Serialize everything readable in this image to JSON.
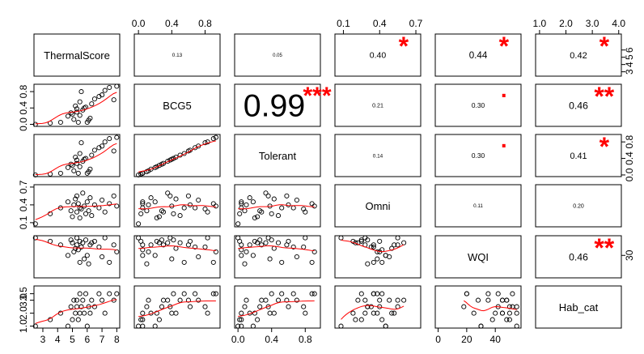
{
  "chart_data": {
    "type": "scatter",
    "variables": [
      "ThermalScore",
      "BCG5",
      "Tolerant",
      "Omni",
      "WQI",
      "Hab_cat"
    ],
    "axes": {
      "ThermalScore": {
        "range": [
          2.4,
          8.2
        ],
        "ticks": [
          "3",
          "4",
          "5",
          "6",
          "7",
          "8"
        ]
      },
      "BCG5": {
        "range": [
          -0.05,
          0.98
        ],
        "ticks": [
          "0.0",
          "0.4",
          "0.8"
        ]
      },
      "Tolerant": {
        "range": [
          -0.04,
          0.98
        ],
        "ticks": [
          "0.0",
          "0.4",
          "0.8"
        ]
      },
      "Omni": {
        "range": [
          0.03,
          0.74
        ],
        "ticks": [
          "0.1",
          "0.4",
          "0.7"
        ]
      },
      "WQI": {
        "range": [
          -2,
          58
        ],
        "ticks": [
          "0",
          "20",
          "40"
        ]
      },
      "Hab_cat": {
        "range": [
          0.85,
          4.1
        ],
        "ticks": [
          "1.0",
          "2.0",
          "3.0",
          "4.0"
        ]
      }
    },
    "visible_tick_labels": {
      "bottom": {
        "ThermalScore": [
          "3",
          "4",
          "5",
          "6",
          "7",
          "8"
        ],
        "Tolerant": [
          "0.0",
          "0.4",
          "0.8"
        ],
        "WQI": [
          "0",
          "20",
          "40"
        ]
      },
      "top": {
        "BCG5": [
          "0.0",
          "0.4",
          "0.8"
        ],
        "Omni": [
          "0.1",
          "0.4",
          "0.7"
        ],
        "Hab_cat": [
          "1.0",
          "2.0",
          "3.0",
          "4.0"
        ]
      },
      "left": {
        "BCG5": [
          "0.0",
          "0.4",
          "0.8"
        ],
        "Omni": [
          "0.1",
          "0.4",
          "0.7"
        ],
        "Hab_cat": [
          "1.0",
          "2.0",
          "3.0",
          "3.5"
        ]
      },
      "right": {
        "ThermalScore": [
          "3",
          "4",
          "5",
          "6"
        ],
        "Tolerant": [
          "0.0",
          "0.4",
          "0.8"
        ],
        "WQI": [
          "30"
        ]
      }
    },
    "correlations": [
      {
        "row": 1,
        "col": 2,
        "value": "0.13",
        "stars": ""
      },
      {
        "row": 1,
        "col": 3,
        "value": "0.05",
        "stars": ""
      },
      {
        "row": 1,
        "col": 4,
        "value": "0.40",
        "stars": "*"
      },
      {
        "row": 1,
        "col": 5,
        "value": "0.44",
        "stars": "*"
      },
      {
        "row": 1,
        "col": 6,
        "value": "0.42",
        "stars": "*"
      },
      {
        "row": 2,
        "col": 3,
        "value": "0.99",
        "stars": "***"
      },
      {
        "row": 2,
        "col": 4,
        "value": "0.21",
        "stars": ""
      },
      {
        "row": 2,
        "col": 5,
        "value": "0.30",
        "stars": "."
      },
      {
        "row": 2,
        "col": 6,
        "value": "0.46",
        "stars": "**"
      },
      {
        "row": 3,
        "col": 4,
        "value": "0.14",
        "stars": ""
      },
      {
        "row": 3,
        "col": 5,
        "value": "0.30",
        "stars": "."
      },
      {
        "row": 3,
        "col": 6,
        "value": "0.41",
        "stars": "*"
      },
      {
        "row": 4,
        "col": 5,
        "value": "0.11",
        "stars": ""
      },
      {
        "row": 4,
        "col": 6,
        "value": "0.20",
        "stars": ""
      },
      {
        "row": 5,
        "col": 6,
        "value": "0.46",
        "stars": "**"
      }
    ],
    "observations": {
      "ThermalScore": [
        2.5,
        3.5,
        4.2,
        4.7,
        4.9,
        5.0,
        5.1,
        5.2,
        5.3,
        5.3,
        5.4,
        5.5,
        5.5,
        5.6,
        5.7,
        5.8,
        5.9,
        6.0,
        6.1,
        6.2,
        6.3,
        6.5,
        6.8,
        7.0,
        7.2,
        7.5,
        7.8,
        8.0
      ],
      "BCG5": [
        0.0,
        0.03,
        0.05,
        0.2,
        0.28,
        0.25,
        0.12,
        0.45,
        0.38,
        0.3,
        0.05,
        0.55,
        0.22,
        0.8,
        0.35,
        0.4,
        0.42,
        0.05,
        0.1,
        0.15,
        0.5,
        0.62,
        0.68,
        0.72,
        0.83,
        0.9,
        0.6,
        0.93
      ],
      "Tolerant": [
        0.0,
        0.02,
        0.04,
        0.18,
        0.26,
        0.23,
        0.1,
        0.43,
        0.36,
        0.28,
        0.04,
        0.52,
        0.2,
        0.78,
        0.33,
        0.38,
        0.4,
        0.04,
        0.08,
        0.14,
        0.48,
        0.6,
        0.66,
        0.7,
        0.8,
        0.88,
        0.58,
        0.91
      ],
      "Omni": [
        0.08,
        0.25,
        0.35,
        0.45,
        0.3,
        0.2,
        0.4,
        0.5,
        0.55,
        0.28,
        0.42,
        0.35,
        0.18,
        0.33,
        0.6,
        0.38,
        0.25,
        0.45,
        0.3,
        0.52,
        0.22,
        0.4,
        0.35,
        0.48,
        0.28,
        0.42,
        0.55,
        0.38
      ],
      "WQI": [
        55,
        50,
        45,
        30,
        52,
        48,
        35,
        40,
        55,
        45,
        38,
        20,
        50,
        42,
        48,
        25,
        52,
        30,
        18,
        45,
        48,
        50,
        42,
        28,
        55,
        20,
        45,
        35
      ],
      "Hab_cat": [
        1.0,
        1.5,
        2.0,
        1.0,
        2.5,
        1.5,
        3.0,
        2.0,
        2.5,
        3.0,
        1.5,
        3.5,
        2.0,
        2.5,
        3.0,
        2.0,
        3.5,
        1.0,
        2.5,
        2.0,
        3.0,
        2.5,
        3.5,
        3.0,
        2.0,
        3.5,
        3.0,
        3.5
      ]
    },
    "colors": {
      "points": "#000000",
      "smooth": "#ff0000",
      "stars": "#ff0000",
      "text": "#000000",
      "box": "#000000"
    }
  }
}
